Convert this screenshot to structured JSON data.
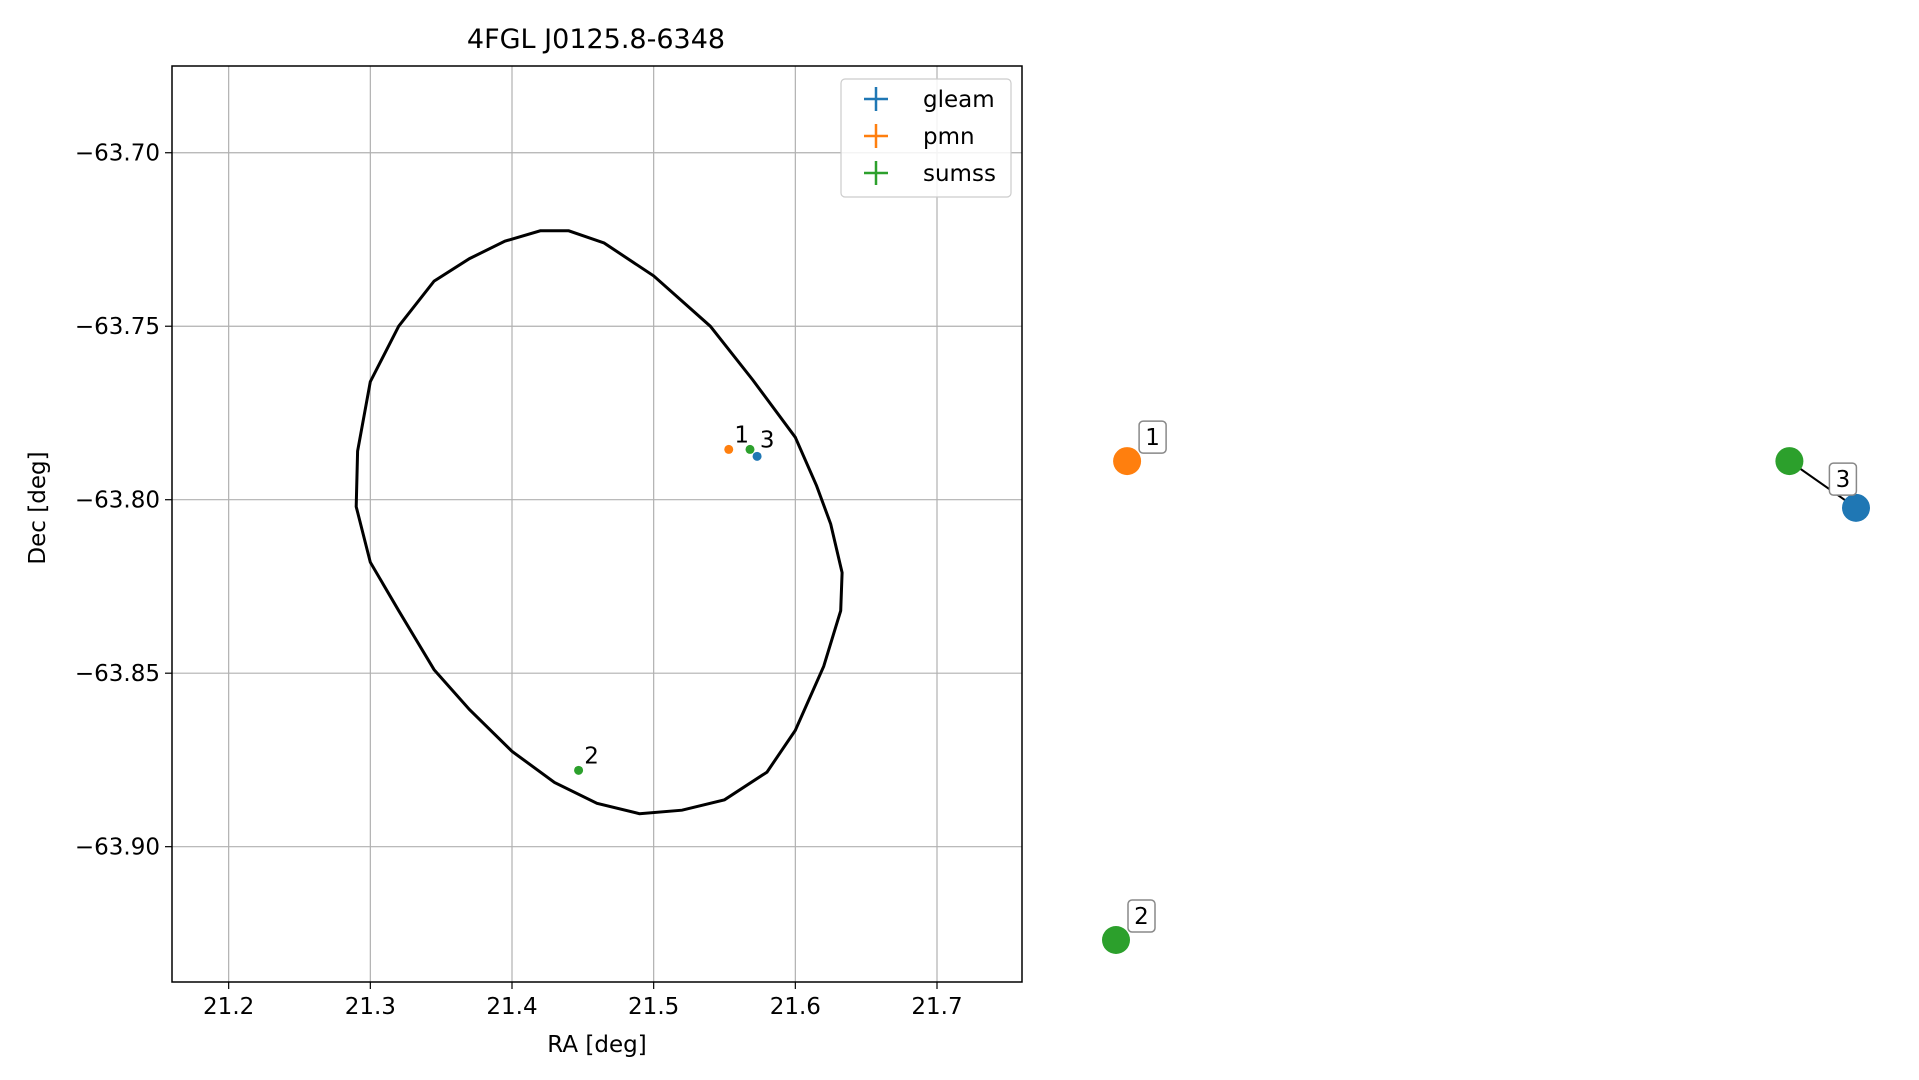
{
  "chart_data": [
    {
      "type": "scatter",
      "title": "4FGL J0125.8-6348",
      "xlabel": "RA [deg]",
      "ylabel": "Dec [deg]",
      "xlim": [
        21.16,
        21.76
      ],
      "ylim": [
        -63.939,
        -63.675
      ],
      "xticks": [
        21.2,
        21.3,
        21.4,
        21.5,
        21.6,
        21.7
      ],
      "xtick_labels": [
        "21.2",
        "21.3",
        "21.4",
        "21.5",
        "21.6",
        "21.7"
      ],
      "yticks": [
        -63.7,
        -63.75,
        -63.8,
        -63.85,
        -63.9
      ],
      "ytick_labels": [
        "−63.70",
        "−63.75",
        "−63.80",
        "−63.85",
        "−63.90"
      ],
      "grid": true,
      "legend_position": "top-right",
      "series": [
        {
          "name": "gleam",
          "color": "#1f77b4",
          "points": [
            {
              "x": 21.573,
              "y": -63.7875
            }
          ]
        },
        {
          "name": "pmn",
          "color": "#ff7f0e",
          "points": [
            {
              "x": 21.553,
              "y": -63.7855
            }
          ]
        },
        {
          "name": "sumss",
          "color": "#2ca02c",
          "points": [
            {
              "x": 21.568,
              "y": -63.7855
            },
            {
              "x": 21.447,
              "y": -63.878
            }
          ]
        }
      ],
      "point_labels": [
        {
          "text": "1",
          "x": 21.557,
          "y": -63.7835
        },
        {
          "text": "3",
          "x": 21.575,
          "y": -63.785
        },
        {
          "text": "2",
          "x": 21.451,
          "y": -63.876
        }
      ],
      "ellipse": {
        "color": "#000000",
        "points": [
          [
            21.42,
            -63.7225
          ],
          [
            21.44,
            -63.7225
          ],
          [
            21.465,
            -63.726
          ],
          [
            21.5,
            -63.7355
          ],
          [
            21.54,
            -63.75
          ],
          [
            21.57,
            -63.7655
          ],
          [
            21.6,
            -63.782
          ],
          [
            21.615,
            -63.796
          ],
          [
            21.625,
            -63.807
          ],
          [
            21.633,
            -63.821
          ],
          [
            21.632,
            -63.832
          ],
          [
            21.62,
            -63.848
          ],
          [
            21.6,
            -63.8665
          ],
          [
            21.58,
            -63.8785
          ],
          [
            21.55,
            -63.8865
          ],
          [
            21.52,
            -63.8895
          ],
          [
            21.49,
            -63.8905
          ],
          [
            21.46,
            -63.8875
          ],
          [
            21.43,
            -63.8815
          ],
          [
            21.4,
            -63.8725
          ],
          [
            21.37,
            -63.8605
          ],
          [
            21.345,
            -63.849
          ],
          [
            21.32,
            -63.832
          ],
          [
            21.3,
            -63.818
          ],
          [
            21.29,
            -63.802
          ],
          [
            21.291,
            -63.786
          ],
          [
            21.3,
            -63.766
          ],
          [
            21.32,
            -63.75
          ],
          [
            21.345,
            -63.737
          ],
          [
            21.37,
            -63.7305
          ],
          [
            21.395,
            -63.7255
          ]
        ]
      }
    },
    {
      "type": "scatter",
      "title": "",
      "points": [
        {
          "label": "1",
          "color": "#ff7f0e",
          "x": 0.015,
          "y": 0.82
        },
        {
          "label": "2",
          "color": "#2ca02c",
          "x": 0.0,
          "y": 0.0
        },
        {
          "label": "3",
          "color": "#2ca02c",
          "x": 0.91,
          "y": 0.82
        },
        {
          "label": "3",
          "color": "#1f77b4",
          "x": 1.0,
          "y": 0.74
        }
      ],
      "links": [
        [
          2,
          3
        ]
      ]
    }
  ]
}
